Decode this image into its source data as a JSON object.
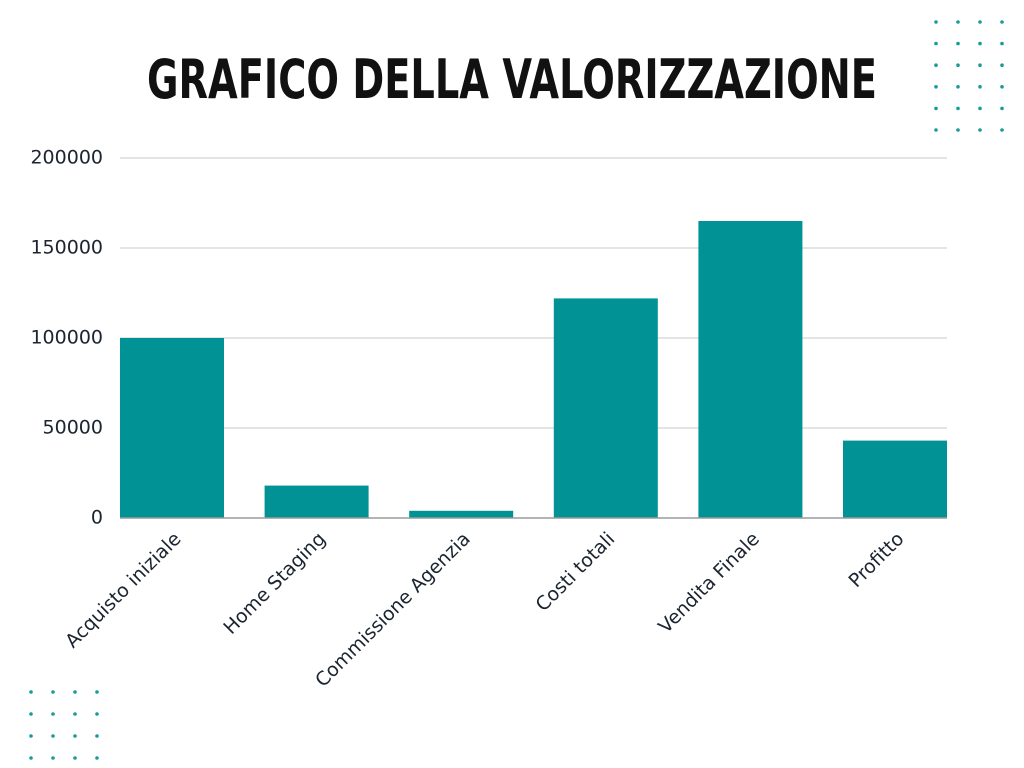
{
  "chart_data": {
    "type": "bar",
    "title": "GRAFICO DELLA VALORIZZAZIONE",
    "categories": [
      "Acquisto iniziale",
      "Home Staging",
      "Commissione Agenzia",
      "Costi totali",
      "Vendita Finale",
      "Profitto"
    ],
    "values": [
      100000,
      18000,
      4000,
      122000,
      165000,
      43000
    ],
    "color": "#009294",
    "ylim": [
      0,
      200000
    ],
    "yticks": [
      0,
      50000,
      100000,
      150000,
      200000
    ],
    "grid": true
  }
}
